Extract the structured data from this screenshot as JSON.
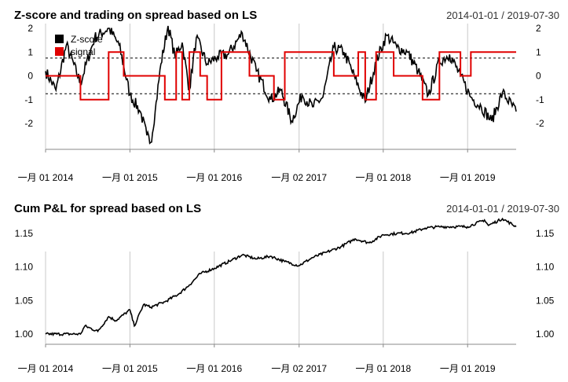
{
  "chart_data": [
    {
      "type": "line",
      "title": "Z-score and trading on spread based on LS",
      "date_range": "2014-01-01 / 2019-07-30",
      "x_tick_labels": [
        "一月 01 2014",
        "一月 01 2015",
        "一月 01 2016",
        "一月 02 2017",
        "一月 01 2018",
        "一月 01 2019"
      ],
      "y_ticks": [
        "2",
        "1",
        "0",
        "-1",
        "-2"
      ],
      "ylim": [
        -2.9,
        2.1
      ],
      "threshold_lines": [
        0.75,
        -0.75
      ],
      "legend": {
        "position": "top-left",
        "entries": [
          "Z-score",
          "signal"
        ]
      },
      "series": [
        {
          "name": "Z-score",
          "color": "#000000",
          "x": [
            "2014-01-01",
            "2014-02-15",
            "2014-04-01",
            "2014-06-01",
            "2014-08-01",
            "2014-10-01",
            "2014-11-15",
            "2015-01-01",
            "2015-02-15",
            "2015-03-15",
            "2015-04-01",
            "2015-04-20",
            "2015-05-15",
            "2015-06-15",
            "2015-07-15",
            "2015-08-15",
            "2015-09-15",
            "2015-10-15",
            "2015-12-01",
            "2016-01-15",
            "2016-03-01",
            "2016-05-01",
            "2016-07-01",
            "2016-09-01",
            "2016-10-15",
            "2016-12-01",
            "2017-01-15",
            "2017-03-01",
            "2017-04-15",
            "2017-06-01",
            "2017-07-15",
            "2017-09-01",
            "2017-10-15",
            "2017-12-01",
            "2018-01-15",
            "2018-03-01",
            "2018-04-15",
            "2018-06-01",
            "2018-07-15",
            "2018-09-01",
            "2018-10-15",
            "2018-12-01",
            "2019-01-15",
            "2019-03-01",
            "2019-04-15",
            "2019-06-01",
            "2019-07-30"
          ],
          "values": [
            0.2,
            -0.6,
            1.3,
            -0.3,
            1.6,
            2.0,
            1.3,
            -0.8,
            -1.5,
            -2.5,
            -2.8,
            -1.5,
            0.5,
            2.1,
            0.8,
            1.4,
            -0.6,
            1.6,
            0.5,
            0.8,
            0.9,
            1.8,
            0.2,
            -1.0,
            -0.6,
            -1.9,
            -0.8,
            -1.3,
            -0.9,
            1.2,
            1.0,
            -0.1,
            -1.1,
            0.6,
            1.7,
            1.2,
            1.0,
            0.2,
            -0.8,
            0.6,
            0.9,
            0.0,
            -0.9,
            -1.3,
            -1.9,
            -0.7,
            -1.5
          ]
        },
        {
          "name": "signal",
          "color": "#e00000",
          "x": [
            "2014-01-01",
            "2014-06-01",
            "2014-10-01",
            "2014-12-05",
            "2015-06-01",
            "2015-07-20",
            "2015-08-15",
            "2015-09-15",
            "2015-11-01",
            "2015-12-01",
            "2016-02-01",
            "2016-06-01",
            "2016-09-15",
            "2016-11-01",
            "2017-06-01",
            "2017-09-15",
            "2017-10-15",
            "2017-12-01",
            "2018-02-15",
            "2018-06-20",
            "2018-09-01",
            "2018-12-01",
            "2019-01-15",
            "2019-07-30"
          ],
          "values": [
            0,
            -1,
            1,
            0,
            -1,
            1,
            -1,
            1,
            0,
            -1,
            1,
            0,
            -1,
            1,
            0,
            1,
            -1,
            1,
            0,
            -1,
            1,
            0,
            1,
            1
          ]
        }
      ]
    },
    {
      "type": "line",
      "title": "Cum P&L for spread based on LS",
      "date_range": "2014-01-01 / 2019-07-30",
      "x_tick_labels": [
        "一月 01 2014",
        "一月 01 2015",
        "一月 01 2016",
        "一月 02 2017",
        "一月 01 2018",
        "一月 01 2019"
      ],
      "y_ticks": [
        "1.15",
        "1.10",
        "1.05",
        "1.00"
      ],
      "ylim": [
        0.99,
        1.18
      ],
      "series": [
        {
          "name": "Cum P&L",
          "color": "#000000",
          "x": [
            "2014-01-01",
            "2014-06-01",
            "2014-06-20",
            "2014-08-15",
            "2014-10-01",
            "2014-11-01",
            "2015-01-01",
            "2015-01-20",
            "2015-03-01",
            "2015-04-01",
            "2015-06-01",
            "2015-08-01",
            "2015-09-15",
            "2015-11-01",
            "2016-01-01",
            "2016-03-15",
            "2016-05-01",
            "2016-07-01",
            "2016-09-01",
            "2016-11-01",
            "2017-01-01",
            "2017-03-01",
            "2017-05-01",
            "2017-07-01",
            "2017-09-01",
            "2017-11-01",
            "2018-01-01",
            "2018-03-01",
            "2018-05-01",
            "2018-07-01",
            "2018-09-01",
            "2018-11-01",
            "2019-01-01",
            "2019-03-15",
            "2019-04-01",
            "2019-06-01",
            "2019-07-30"
          ],
          "values": [
            1.0,
            1.0,
            1.012,
            1.004,
            1.026,
            1.02,
            1.036,
            1.012,
            1.044,
            1.04,
            1.048,
            1.06,
            1.073,
            1.09,
            1.098,
            1.11,
            1.118,
            1.112,
            1.116,
            1.108,
            1.102,
            1.114,
            1.122,
            1.13,
            1.142,
            1.136,
            1.148,
            1.15,
            1.151,
            1.158,
            1.16,
            1.16,
            1.16,
            1.17,
            1.162,
            1.172,
            1.16
          ]
        }
      ]
    }
  ]
}
